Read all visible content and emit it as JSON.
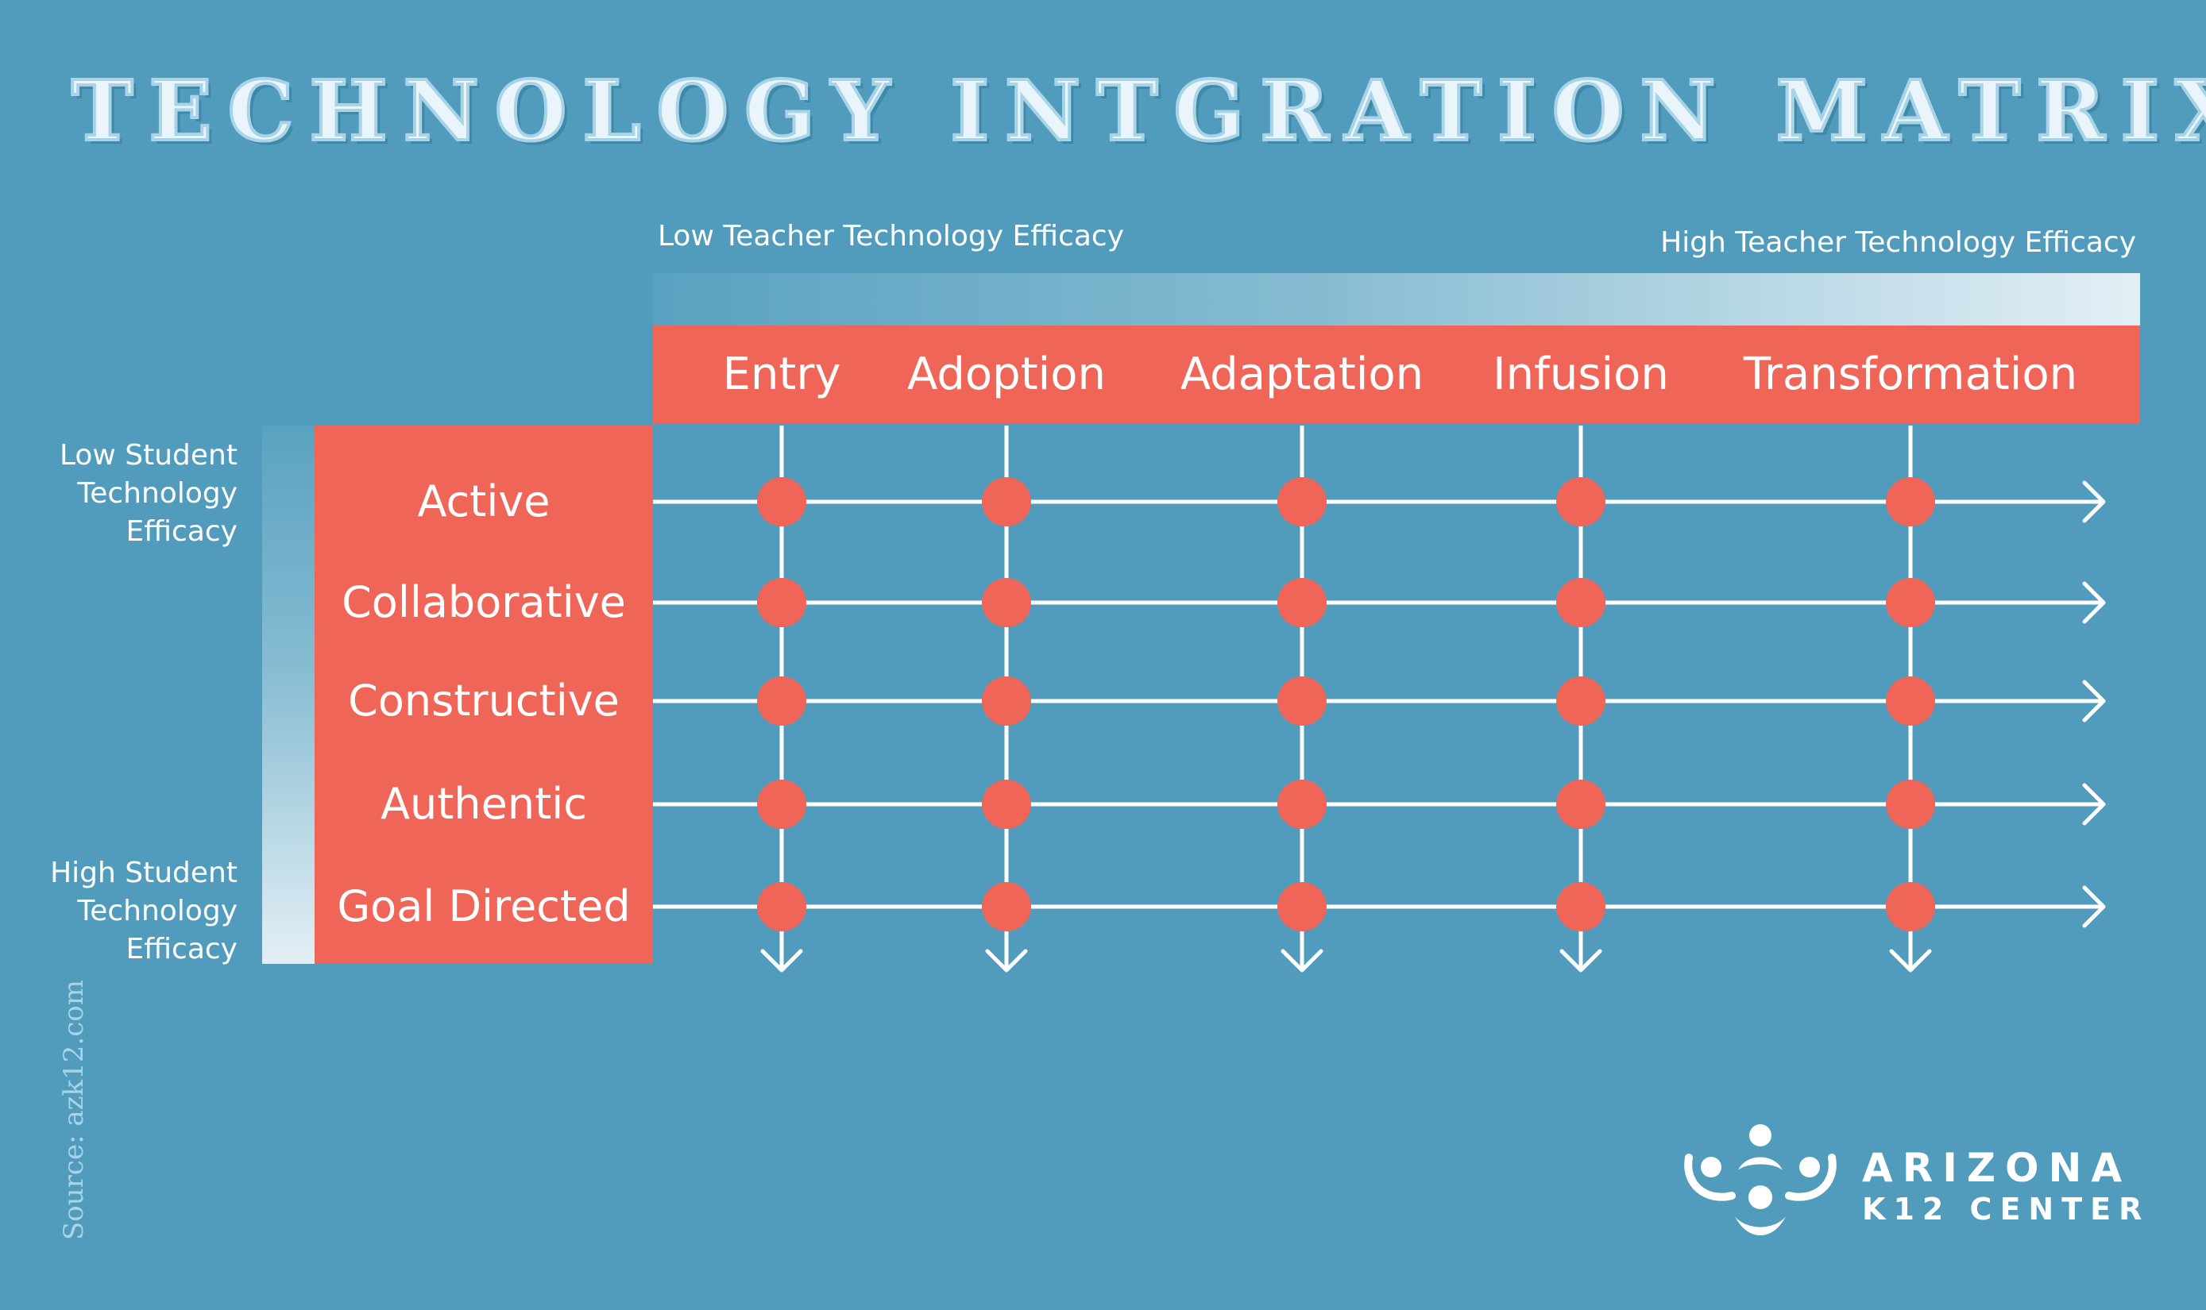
{
  "title": "TECHNOLOGY INTGRATION MATRIX",
  "teacher_axis": {
    "low_label": "Low Teacher Technology Efficacy",
    "high_label": "High Teacher Technology Efficacy"
  },
  "student_axis": {
    "low_label": "Low Student Technology Efficacy",
    "high_label": "High Student Technology Efficacy"
  },
  "columns": [
    "Entry",
    "Adoption",
    "Adaptation",
    "Infusion",
    "Transformation"
  ],
  "rows": [
    "Active",
    "Collaborative",
    "Constructive",
    "Authentic",
    "Goal Directed"
  ],
  "source": "Source: azk12.com",
  "logo": {
    "line1": "ARIZONA",
    "line2": "K12 CENTER"
  },
  "colors": {
    "background": "#519cbc",
    "accent": "#ef6557",
    "line": "#ffffff"
  }
}
